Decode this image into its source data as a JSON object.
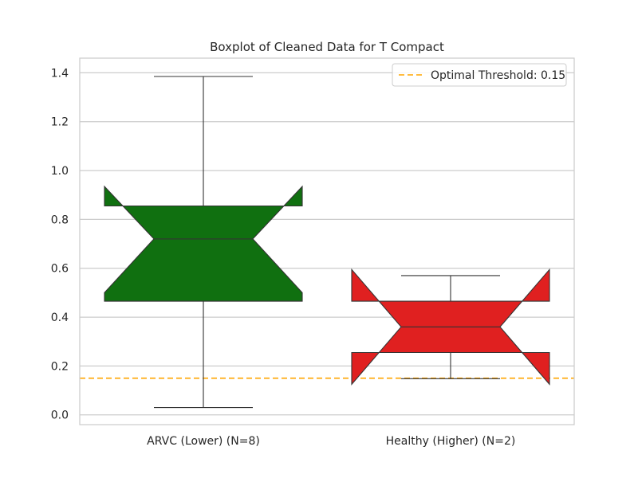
{
  "chart_data": {
    "type": "boxplot",
    "title": "Boxplot of Cleaned Data for T Compact",
    "xlabel": "",
    "ylabel": "",
    "ylim": [
      -0.04,
      1.46
    ],
    "yticks": [
      0.0,
      0.2,
      0.4,
      0.6,
      0.8,
      1.0,
      1.2,
      1.4
    ],
    "ytick_labels": [
      "0.0",
      "0.2",
      "0.4",
      "0.6",
      "0.8",
      "1.0",
      "1.2",
      "1.4"
    ],
    "grid": "horizontal",
    "notched": true,
    "categories": [
      "ARVC (Lower) (N=8)",
      "Healthy (Higher) (N=2)"
    ],
    "boxes": [
      {
        "label": "ARVC (Lower) (N=8)",
        "color": "#107010",
        "whisker_low": 0.03,
        "q1": 0.465,
        "median": 0.72,
        "q3": 0.855,
        "whisker_high": 1.385,
        "notch_low": 0.5,
        "notch_high": 0.935
      },
      {
        "label": "Healthy (Higher) (N=2)",
        "color": "#e02020",
        "whisker_low": 0.148,
        "q1": 0.255,
        "median": 0.36,
        "q3": 0.465,
        "whisker_high": 0.57,
        "notch_low": 0.125,
        "notch_high": 0.595
      }
    ],
    "reference_line": {
      "value": 0.15,
      "label": "Optimal Threshold: 0.15",
      "color": "#ffa500",
      "style": "dashed"
    },
    "legend": {
      "position": "top-right",
      "entries": [
        "Optimal Threshold: 0.15"
      ]
    }
  }
}
